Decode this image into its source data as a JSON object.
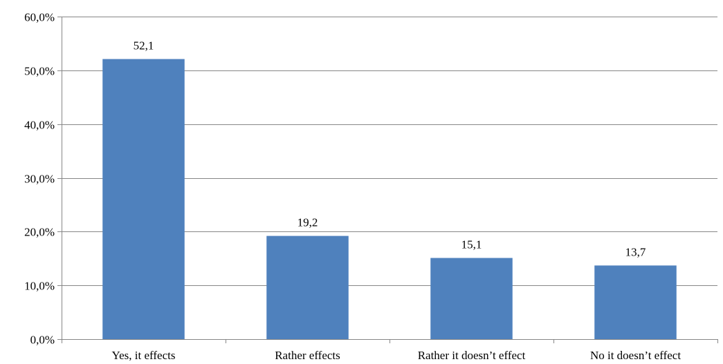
{
  "chart_data": {
    "type": "bar",
    "categories": [
      "Yes, it effects",
      "Rather effects",
      "Rather it doesn’t effect",
      "No it doesn’t effect"
    ],
    "values": [
      52.1,
      19.2,
      15.1,
      13.7
    ],
    "data_labels": [
      "52,1",
      "19,2",
      "15,1",
      "13,7"
    ],
    "y_ticks": [
      0,
      10,
      20,
      30,
      40,
      50,
      60
    ],
    "y_tick_labels": [
      "0,0%",
      "10,0%",
      "20,0%",
      "30,0%",
      "40,0%",
      "50,0%",
      "60,0%"
    ],
    "ylim": [
      0,
      60
    ],
    "grid": true,
    "legend": "none",
    "bar_color": "#4F81BD",
    "grid_color": "#868686",
    "axis_color": "#868686"
  }
}
